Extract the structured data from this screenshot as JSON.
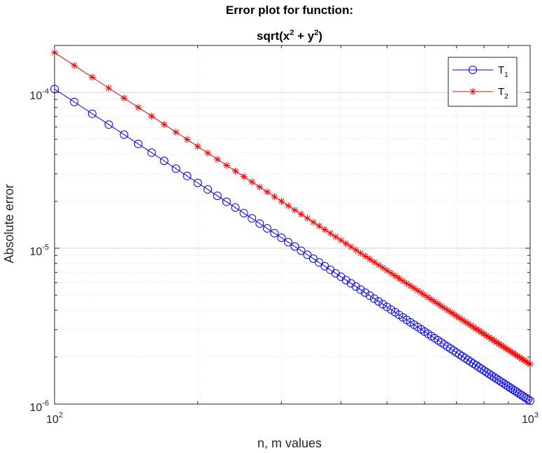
{
  "chart_data": {
    "type": "line",
    "title": "Error plot for function:",
    "subtitle_parts": [
      "sqrt(x",
      "2",
      " + y",
      "2",
      ")"
    ],
    "xlabel": "n, m values",
    "ylabel": "Absolute error",
    "xscale": "log",
    "yscale": "log",
    "xlim": [
      100,
      1000
    ],
    "ylim": [
      1e-06,
      0.0002
    ],
    "grid": true,
    "legend_placement": "top-right",
    "x_ticks": [
      {
        "value": 100,
        "base": "10",
        "exp": "2"
      },
      {
        "value": 1000,
        "base": "10",
        "exp": "3"
      }
    ],
    "y_ticks": [
      {
        "value": 1e-06,
        "base": "10",
        "exp": "-6"
      },
      {
        "value": 1e-05,
        "base": "10",
        "exp": "-5"
      },
      {
        "value": 0.0001,
        "base": "10",
        "exp": "-4"
      }
    ],
    "series": [
      {
        "name": "T",
        "name_sub": "1",
        "color": "#0000ff",
        "marker": "circle",
        "x_start": 100,
        "x_end": 1000,
        "x_step": 10,
        "y_at_start": 0.000105,
        "y_at_end": 1.05e-06,
        "order": 2
      },
      {
        "name": "T",
        "name_sub": "2",
        "color": "#ff0000",
        "marker": "asterisk",
        "x_start": 100,
        "x_end": 1000,
        "x_step": 10,
        "y_at_start": 0.00018,
        "y_at_end": 1.85e-06,
        "order": 2
      }
    ]
  }
}
